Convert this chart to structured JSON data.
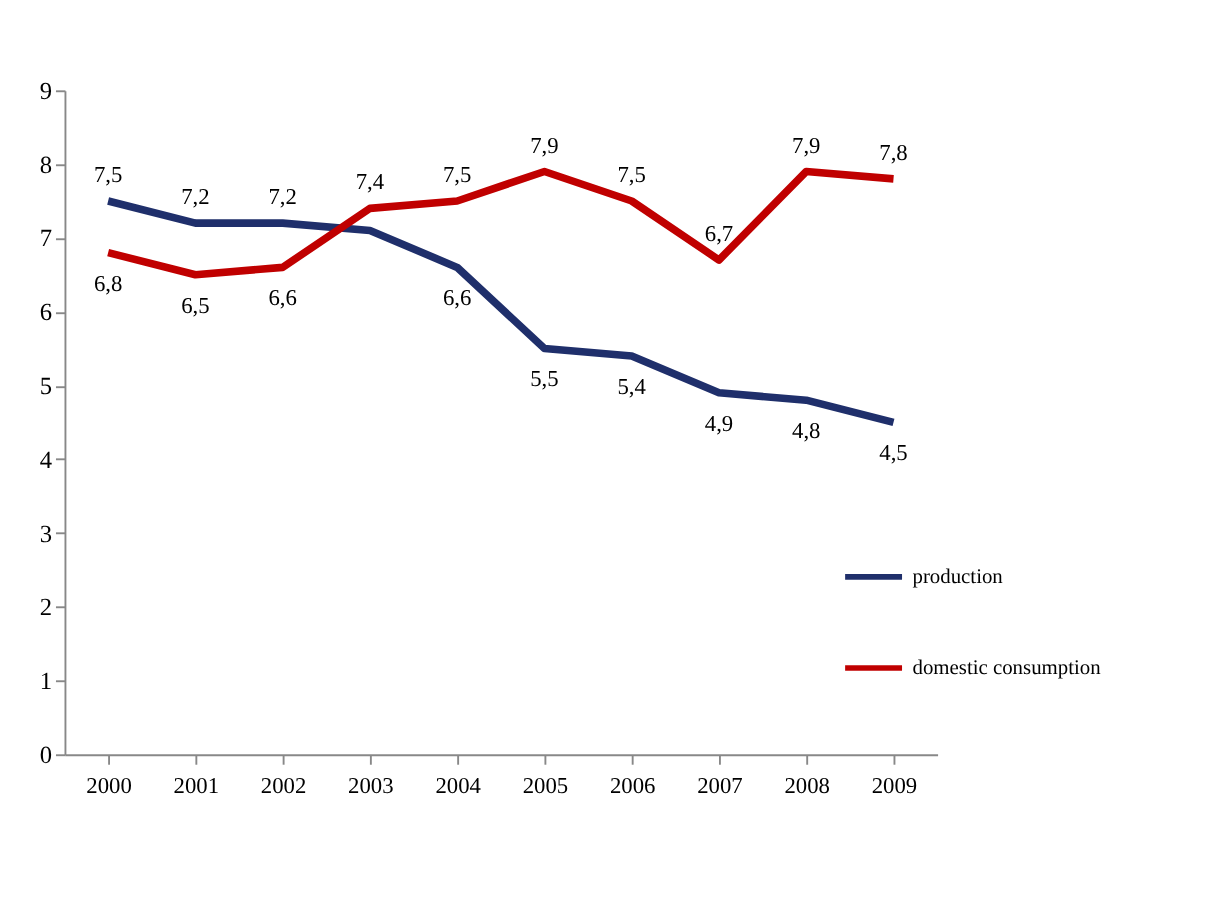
{
  "chart_data": {
    "type": "line",
    "categories": [
      "2000",
      "2001",
      "2002",
      "2003",
      "2004",
      "2005",
      "2006",
      "2007",
      "2008",
      "2009"
    ],
    "ylim": [
      0,
      9
    ],
    "yticks": [
      0,
      1,
      2,
      3,
      4,
      5,
      6,
      7,
      8,
      9
    ],
    "grid": false,
    "legend": "right",
    "marker": "none",
    "line_style": "solid",
    "series": [
      {
        "name": "production",
        "color": "#1f2f6b",
        "values": [
          7.5,
          7.2,
          7.2,
          7.1,
          6.6,
          5.5,
          5.4,
          4.9,
          4.8,
          4.5
        ],
        "value_labels": [
          "7,5",
          "7,2",
          "7,2",
          null,
          "6,6",
          "5,5",
          "5,4",
          "4,9",
          "4,8",
          "4,5"
        ]
      },
      {
        "name": "domestic consumption",
        "color": "#c00000",
        "values": [
          6.8,
          6.5,
          6.6,
          7.4,
          7.5,
          7.9,
          7.5,
          6.7,
          7.9,
          7.8
        ],
        "value_labels": [
          "6,8",
          "6,5",
          "6,6",
          "7,4",
          "7,5",
          "7,9",
          "7,5",
          "6,7",
          "7,9",
          "7,8"
        ]
      }
    ]
  }
}
